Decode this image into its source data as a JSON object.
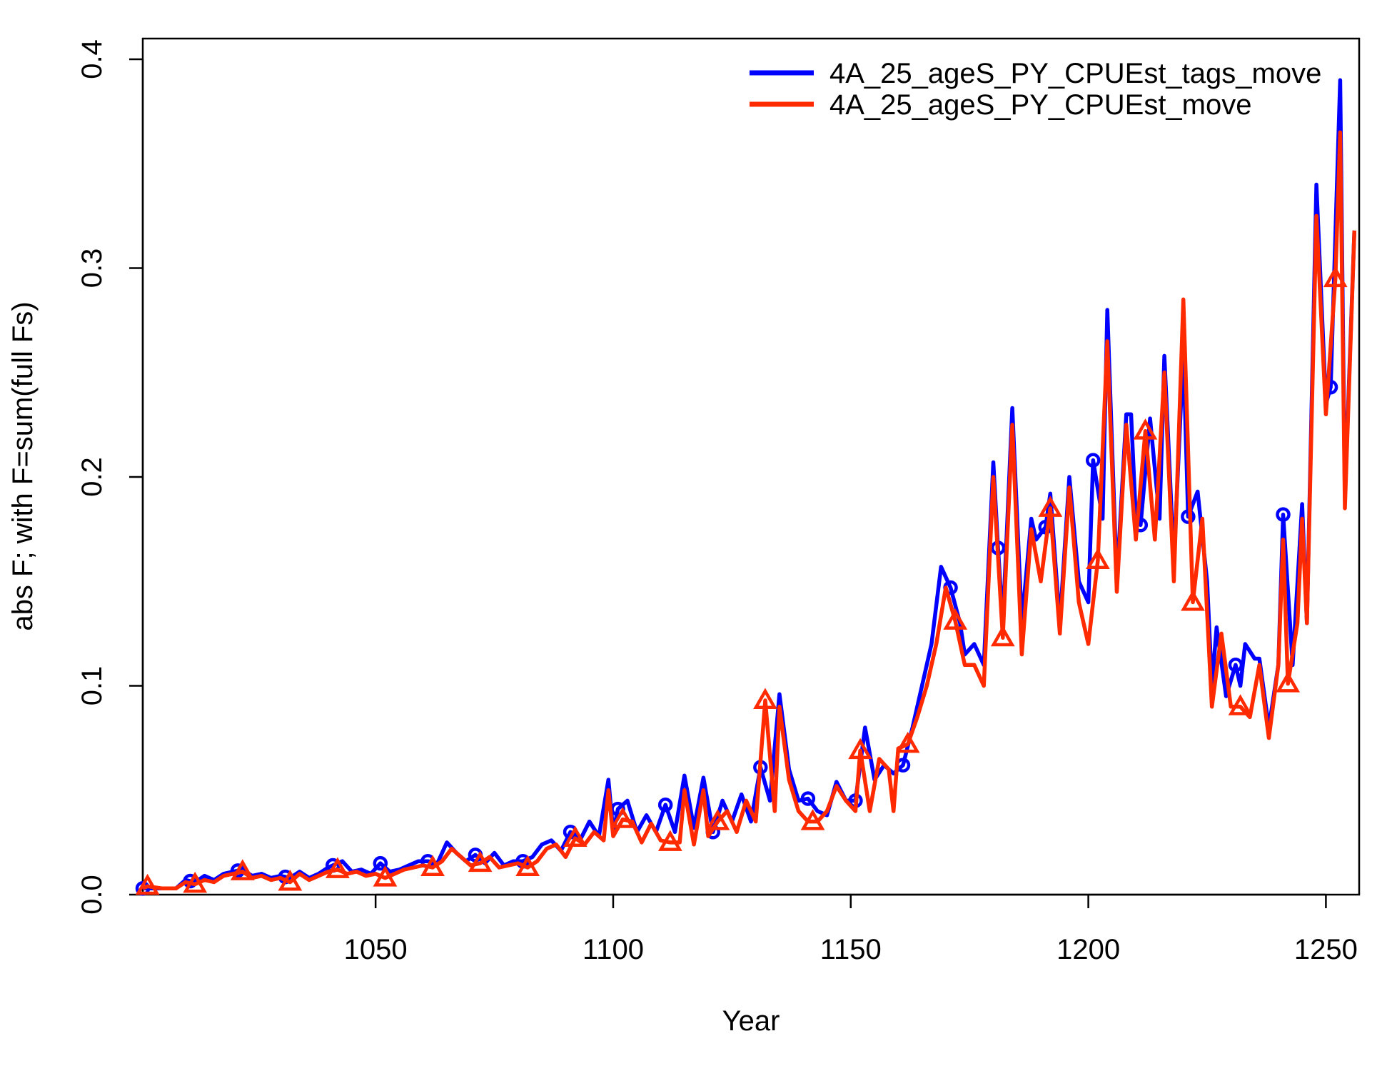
{
  "chart_data": {
    "type": "line",
    "title": "",
    "xlabel": "Year",
    "ylabel": "abs F; with F=sum(full Fs)",
    "xlim": [
      1001,
      1257
    ],
    "ylim": [
      0,
      0.4
    ],
    "x_ticks": [
      1050,
      1100,
      1150,
      1200,
      1250
    ],
    "x_tick_labels": [
      "1050",
      "1100",
      "1150",
      "1200",
      "1250"
    ],
    "y_ticks": [
      0,
      0.1,
      0.2,
      0.3,
      0.4
    ],
    "y_tick_labels": [
      "0.0",
      "0.1",
      "0.2",
      "0.3",
      "0.4"
    ],
    "grid": false,
    "legend_position": "top-right",
    "series": [
      {
        "name": "4A_25_ageS_PY_CPUEst_tags_move",
        "color": "#0000ff",
        "marker": "circle",
        "marker_every": 10,
        "marker_start": 1001,
        "points": [
          [
            1001,
            0.003
          ],
          [
            1005,
            0.003
          ],
          [
            1008,
            0.003
          ],
          [
            1010,
            0.007
          ],
          [
            1012,
            0.006
          ],
          [
            1014,
            0.009
          ],
          [
            1016,
            0.007
          ],
          [
            1018,
            0.01
          ],
          [
            1020,
            0.011
          ],
          [
            1022,
            0.012
          ],
          [
            1024,
            0.009
          ],
          [
            1026,
            0.01
          ],
          [
            1028,
            0.008
          ],
          [
            1030,
            0.009
          ],
          [
            1032,
            0.008
          ],
          [
            1034,
            0.011
          ],
          [
            1036,
            0.008
          ],
          [
            1038,
            0.01
          ],
          [
            1040,
            0.013
          ],
          [
            1041,
            0.014
          ],
          [
            1043,
            0.016
          ],
          [
            1045,
            0.011
          ],
          [
            1047,
            0.012
          ],
          [
            1049,
            0.01
          ],
          [
            1051,
            0.015
          ],
          [
            1053,
            0.011
          ],
          [
            1055,
            0.012
          ],
          [
            1057,
            0.014
          ],
          [
            1059,
            0.016
          ],
          [
            1061,
            0.016
          ],
          [
            1063,
            0.015
          ],
          [
            1065,
            0.025
          ],
          [
            1067,
            0.02
          ],
          [
            1069,
            0.016
          ],
          [
            1071,
            0.019
          ],
          [
            1073,
            0.015
          ],
          [
            1075,
            0.02
          ],
          [
            1077,
            0.014
          ],
          [
            1079,
            0.016
          ],
          [
            1081,
            0.016
          ],
          [
            1083,
            0.018
          ],
          [
            1085,
            0.024
          ],
          [
            1087,
            0.026
          ],
          [
            1089,
            0.021
          ],
          [
            1091,
            0.03
          ],
          [
            1093,
            0.026
          ],
          [
            1095,
            0.035
          ],
          [
            1097,
            0.028
          ],
          [
            1099,
            0.055
          ],
          [
            1100,
            0.03
          ],
          [
            1101,
            0.041
          ],
          [
            1103,
            0.045
          ],
          [
            1105,
            0.03
          ],
          [
            1107,
            0.038
          ],
          [
            1109,
            0.03
          ],
          [
            1111,
            0.043
          ],
          [
            1113,
            0.03
          ],
          [
            1115,
            0.057
          ],
          [
            1117,
            0.032
          ],
          [
            1119,
            0.056
          ],
          [
            1121,
            0.03
          ],
          [
            1123,
            0.045
          ],
          [
            1125,
            0.035
          ],
          [
            1127,
            0.048
          ],
          [
            1129,
            0.035
          ],
          [
            1131,
            0.061
          ],
          [
            1133,
            0.045
          ],
          [
            1135,
            0.096
          ],
          [
            1137,
            0.06
          ],
          [
            1139,
            0.045
          ],
          [
            1141,
            0.046
          ],
          [
            1143,
            0.04
          ],
          [
            1145,
            0.038
          ],
          [
            1147,
            0.054
          ],
          [
            1149,
            0.045
          ],
          [
            1151,
            0.045
          ],
          [
            1153,
            0.08
          ],
          [
            1155,
            0.055
          ],
          [
            1157,
            0.062
          ],
          [
            1159,
            0.058
          ],
          [
            1161,
            0.062
          ],
          [
            1163,
            0.08
          ],
          [
            1165,
            0.1
          ],
          [
            1167,
            0.12
          ],
          [
            1169,
            0.157
          ],
          [
            1171,
            0.147
          ],
          [
            1173,
            0.13
          ],
          [
            1174,
            0.115
          ],
          [
            1176,
            0.12
          ],
          [
            1178,
            0.11
          ],
          [
            1180,
            0.207
          ],
          [
            1181,
            0.166
          ],
          [
            1182,
            0.13
          ],
          [
            1184,
            0.233
          ],
          [
            1186,
            0.13
          ],
          [
            1188,
            0.18
          ],
          [
            1189,
            0.17
          ],
          [
            1191,
            0.176
          ],
          [
            1192,
            0.192
          ],
          [
            1194,
            0.13
          ],
          [
            1196,
            0.2
          ],
          [
            1198,
            0.15
          ],
          [
            1200,
            0.14
          ],
          [
            1201,
            0.208
          ],
          [
            1203,
            0.18
          ],
          [
            1204,
            0.28
          ],
          [
            1206,
            0.15
          ],
          [
            1208,
            0.23
          ],
          [
            1209,
            0.23
          ],
          [
            1210,
            0.18
          ],
          [
            1211,
            0.177
          ],
          [
            1213,
            0.228
          ],
          [
            1215,
            0.18
          ],
          [
            1216,
            0.258
          ],
          [
            1218,
            0.16
          ],
          [
            1220,
            0.26
          ],
          [
            1221,
            0.181
          ],
          [
            1223,
            0.193
          ],
          [
            1225,
            0.15
          ],
          [
            1226,
            0.1
          ],
          [
            1227,
            0.128
          ],
          [
            1229,
            0.095
          ],
          [
            1231,
            0.11
          ],
          [
            1232,
            0.1
          ],
          [
            1233,
            0.12
          ],
          [
            1235,
            0.113
          ],
          [
            1236,
            0.113
          ],
          [
            1238,
            0.08
          ],
          [
            1240,
            0.11
          ],
          [
            1241,
            0.182
          ],
          [
            1243,
            0.11
          ],
          [
            1245,
            0.187
          ],
          [
            1246,
            0.13
          ],
          [
            1248,
            0.34
          ],
          [
            1250,
            0.235
          ],
          [
            1251,
            0.243
          ],
          [
            1253,
            0.39
          ],
          [
            1254,
            0.19
          ],
          [
            1256,
            0.318
          ]
        ]
      },
      {
        "name": "4A_25_ageS_PY_CPUEst_move",
        "color": "#ff2a00",
        "marker": "triangle",
        "marker_every": 10,
        "marker_start": 1002,
        "points": [
          [
            1001,
            0.003
          ],
          [
            1002,
            0.004
          ],
          [
            1005,
            0.003
          ],
          [
            1008,
            0.003
          ],
          [
            1010,
            0.006
          ],
          [
            1012,
            0.005
          ],
          [
            1014,
            0.007
          ],
          [
            1016,
            0.006
          ],
          [
            1018,
            0.009
          ],
          [
            1020,
            0.01
          ],
          [
            1022,
            0.011
          ],
          [
            1024,
            0.008
          ],
          [
            1026,
            0.009
          ],
          [
            1028,
            0.007
          ],
          [
            1030,
            0.008
          ],
          [
            1032,
            0.006
          ],
          [
            1034,
            0.01
          ],
          [
            1036,
            0.007
          ],
          [
            1038,
            0.009
          ],
          [
            1040,
            0.011
          ],
          [
            1042,
            0.012
          ],
          [
            1044,
            0.01
          ],
          [
            1046,
            0.011
          ],
          [
            1048,
            0.009
          ],
          [
            1050,
            0.01
          ],
          [
            1052,
            0.008
          ],
          [
            1054,
            0.01
          ],
          [
            1056,
            0.012
          ],
          [
            1058,
            0.013
          ],
          [
            1060,
            0.014
          ],
          [
            1062,
            0.013
          ],
          [
            1064,
            0.016
          ],
          [
            1066,
            0.022
          ],
          [
            1068,
            0.018
          ],
          [
            1070,
            0.014
          ],
          [
            1072,
            0.015
          ],
          [
            1074,
            0.018
          ],
          [
            1076,
            0.013
          ],
          [
            1078,
            0.014
          ],
          [
            1080,
            0.015
          ],
          [
            1082,
            0.013
          ],
          [
            1084,
            0.016
          ],
          [
            1086,
            0.022
          ],
          [
            1088,
            0.024
          ],
          [
            1090,
            0.018
          ],
          [
            1092,
            0.027
          ],
          [
            1094,
            0.024
          ],
          [
            1096,
            0.03
          ],
          [
            1098,
            0.026
          ],
          [
            1099,
            0.05
          ],
          [
            1100,
            0.028
          ],
          [
            1102,
            0.036
          ],
          [
            1104,
            0.035
          ],
          [
            1106,
            0.025
          ],
          [
            1108,
            0.034
          ],
          [
            1110,
            0.026
          ],
          [
            1112,
            0.025
          ],
          [
            1114,
            0.025
          ],
          [
            1115,
            0.05
          ],
          [
            1117,
            0.024
          ],
          [
            1119,
            0.05
          ],
          [
            1120,
            0.028
          ],
          [
            1122,
            0.035
          ],
          [
            1124,
            0.04
          ],
          [
            1126,
            0.03
          ],
          [
            1128,
            0.045
          ],
          [
            1130,
            0.035
          ],
          [
            1132,
            0.093
          ],
          [
            1134,
            0.04
          ],
          [
            1135,
            0.09
          ],
          [
            1137,
            0.055
          ],
          [
            1139,
            0.04
          ],
          [
            1141,
            0.035
          ],
          [
            1143,
            0.035
          ],
          [
            1145,
            0.04
          ],
          [
            1147,
            0.052
          ],
          [
            1149,
            0.045
          ],
          [
            1151,
            0.04
          ],
          [
            1152,
            0.069
          ],
          [
            1154,
            0.04
          ],
          [
            1156,
            0.065
          ],
          [
            1158,
            0.06
          ],
          [
            1159,
            0.04
          ],
          [
            1160,
            0.07
          ],
          [
            1162,
            0.072
          ],
          [
            1164,
            0.085
          ],
          [
            1166,
            0.1
          ],
          [
            1168,
            0.12
          ],
          [
            1170,
            0.147
          ],
          [
            1172,
            0.131
          ],
          [
            1174,
            0.11
          ],
          [
            1176,
            0.11
          ],
          [
            1178,
            0.1
          ],
          [
            1180,
            0.2
          ],
          [
            1182,
            0.123
          ],
          [
            1184,
            0.225
          ],
          [
            1186,
            0.115
          ],
          [
            1188,
            0.175
          ],
          [
            1190,
            0.15
          ],
          [
            1192,
            0.185
          ],
          [
            1194,
            0.125
          ],
          [
            1196,
            0.195
          ],
          [
            1198,
            0.14
          ],
          [
            1200,
            0.12
          ],
          [
            1202,
            0.16
          ],
          [
            1204,
            0.265
          ],
          [
            1206,
            0.145
          ],
          [
            1208,
            0.225
          ],
          [
            1210,
            0.17
          ],
          [
            1212,
            0.222
          ],
          [
            1214,
            0.17
          ],
          [
            1216,
            0.25
          ],
          [
            1218,
            0.15
          ],
          [
            1220,
            0.285
          ],
          [
            1222,
            0.14
          ],
          [
            1224,
            0.18
          ],
          [
            1226,
            0.09
          ],
          [
            1228,
            0.125
          ],
          [
            1230,
            0.09
          ],
          [
            1232,
            0.09
          ],
          [
            1234,
            0.085
          ],
          [
            1236,
            0.11
          ],
          [
            1238,
            0.075
          ],
          [
            1240,
            0.11
          ],
          [
            1241,
            0.17
          ],
          [
            1242,
            0.101
          ],
          [
            1244,
            0.13
          ],
          [
            1245,
            0.18
          ],
          [
            1246,
            0.13
          ],
          [
            1248,
            0.325
          ],
          [
            1250,
            0.23
          ],
          [
            1252,
            0.295
          ],
          [
            1253,
            0.365
          ],
          [
            1254,
            0.185
          ],
          [
            1256,
            0.318
          ]
        ]
      }
    ]
  }
}
